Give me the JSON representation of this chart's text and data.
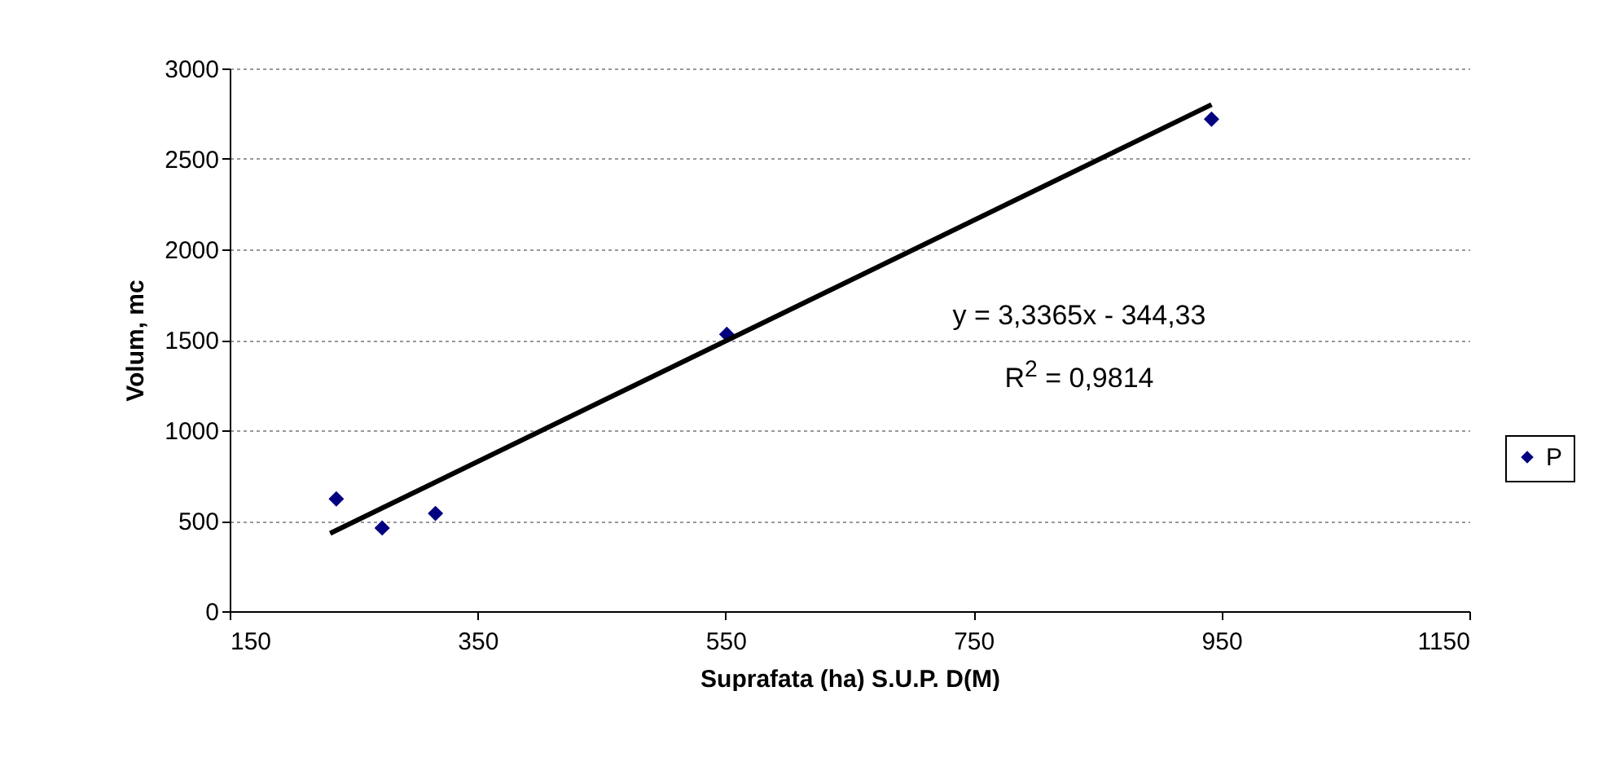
{
  "chart_data": {
    "type": "scatter",
    "xlabel": "Suprafata (ha) S.U.P. D(M)",
    "ylabel": "Volum, mc",
    "xlim": [
      150,
      1150
    ],
    "xticks": [
      150,
      350,
      550,
      750,
      950,
      1150
    ],
    "ylim": [
      0,
      3000
    ],
    "yticks": [
      0,
      500,
      1000,
      1500,
      2000,
      2500,
      3000
    ],
    "grid": "y",
    "legend": "right",
    "annotations": [
      "y = 3,3365x - 344,33",
      "R$^{2}$ = 0,9814"
    ],
    "series": [
      {
        "name": "P",
        "color": "#000080",
        "marker": "diamond",
        "x": [
          236,
          273,
          316,
          551,
          942
        ],
        "values": [
          620,
          460,
          540,
          1530,
          2720
        ]
      },
      {
        "type": "line",
        "color": "#000000",
        "marker": "none",
        "line_style": "solid",
        "x": [
          231,
          942
        ],
        "values": [
          430,
          2800
        ]
      }
    ]
  }
}
